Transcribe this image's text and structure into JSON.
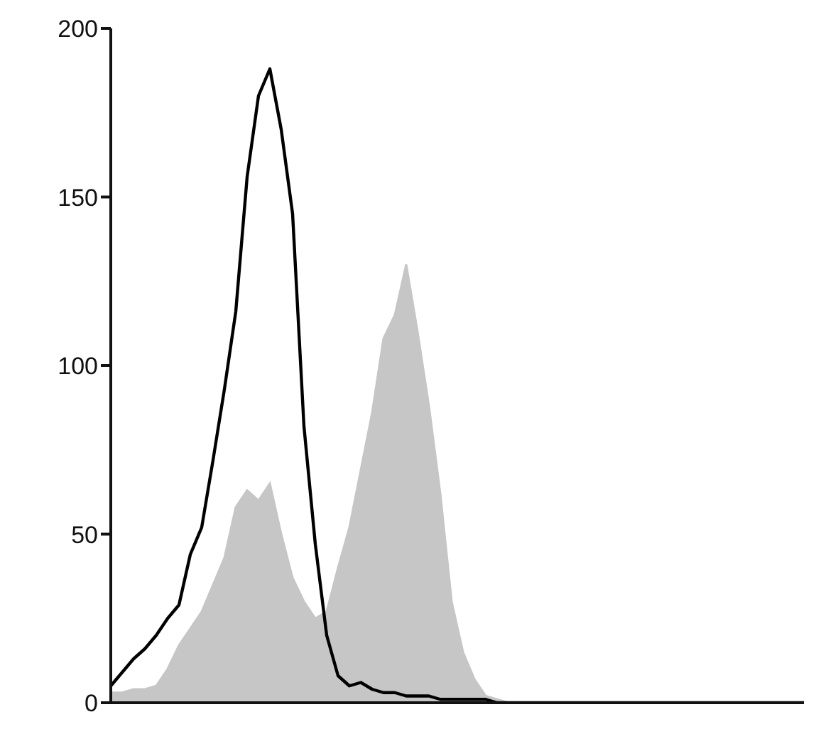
{
  "chart_data": {
    "type": "area",
    "categories": [
      null,
      null,
      null,
      null,
      null,
      null,
      null,
      null,
      null,
      null,
      null,
      null,
      null,
      null,
      null,
      null,
      null,
      null,
      null,
      null,
      null,
      null,
      null,
      null,
      null,
      null,
      null,
      null,
      null,
      null,
      null,
      null,
      null,
      null,
      null,
      null,
      null,
      null,
      null,
      null,
      null,
      null,
      null,
      null,
      null,
      null,
      null,
      null,
      null,
      null,
      null,
      null,
      null,
      null,
      null,
      null,
      null,
      null,
      null,
      null,
      null,
      null
    ],
    "series": [
      {
        "color": "#c6c6c6",
        "values": [
          3,
          3,
          4,
          4,
          5,
          10,
          17,
          22,
          27,
          35,
          43,
          58,
          63,
          60,
          65,
          50,
          37,
          30,
          25,
          27,
          40,
          52,
          69,
          86,
          108,
          115,
          130,
          110,
          88,
          62,
          30,
          15,
          7,
          2,
          1,
          0,
          0,
          0,
          0,
          0,
          0,
          0,
          0,
          0,
          0,
          0,
          0,
          0,
          0,
          0,
          0,
          0,
          0,
          0,
          0,
          0,
          0,
          0,
          0,
          0,
          0,
          0
        ]
      },
      {
        "type": "line",
        "color": "#000000",
        "values": [
          5,
          9,
          13,
          16,
          20,
          25,
          29,
          44,
          52,
          72,
          93,
          116,
          156,
          180,
          188,
          170,
          145,
          82,
          47,
          20,
          8,
          5,
          6,
          4,
          3,
          3,
          2,
          2,
          2,
          1,
          1,
          1,
          1,
          1,
          0,
          0,
          0,
          0,
          0,
          0,
          0,
          0,
          0,
          0,
          0,
          0,
          0,
          0,
          0,
          0,
          0,
          0,
          0,
          0,
          0,
          0,
          0,
          0,
          0,
          0,
          0,
          0
        ]
      }
    ],
    "ylim": [
      0,
      200
    ],
    "yticks": [
      0,
      50,
      100,
      150,
      200
    ],
    "tick_labels": "y",
    "grid": false,
    "legend": false,
    "marker": "none",
    "line_style": "solid"
  }
}
